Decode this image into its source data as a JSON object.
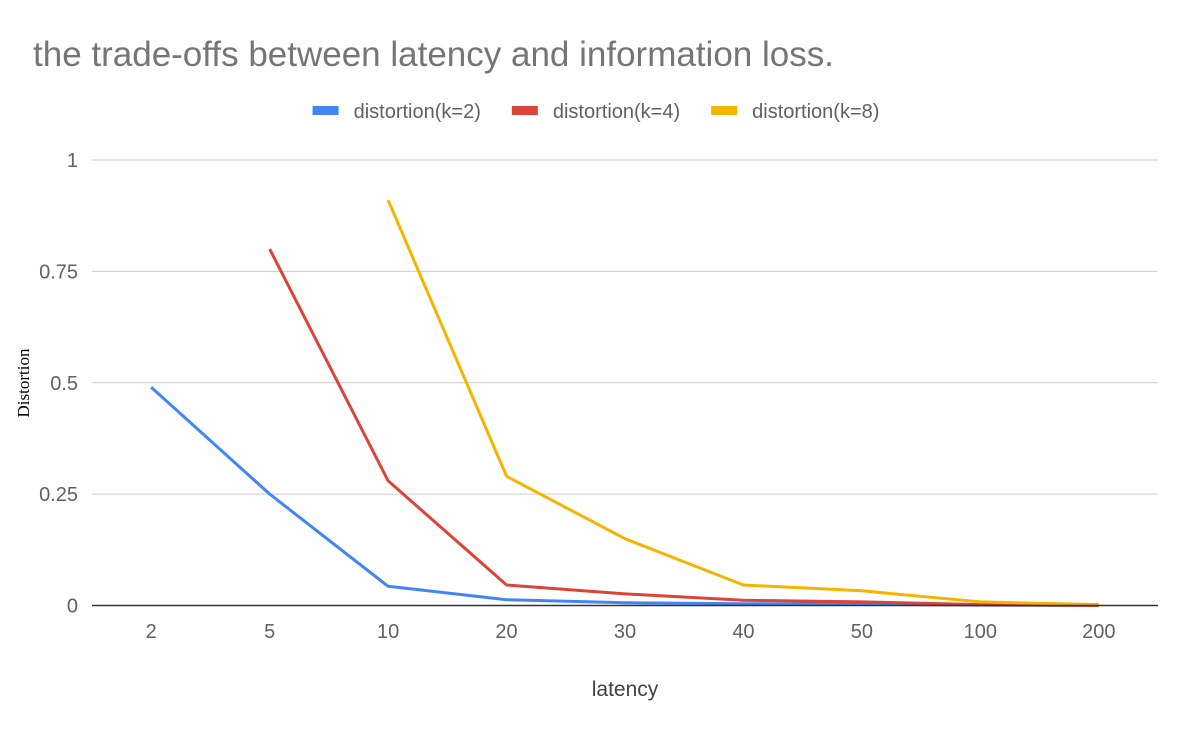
{
  "chart_data": {
    "type": "line",
    "title": "the trade-offs between latency and information loss.",
    "xlabel": "latency",
    "ylabel": "Distortion",
    "categories": [
      "2",
      "5",
      "10",
      "20",
      "30",
      "40",
      "50",
      "100",
      "200"
    ],
    "ylim": [
      0,
      1
    ],
    "yticks": [
      "0",
      "0.25",
      "0.5",
      "0.75",
      "1"
    ],
    "grid": "horizontal",
    "legend_position": "top",
    "series": [
      {
        "name": "distortion(k=2)",
        "color": "#4285F4",
        "values": [
          0.49,
          0.25,
          0.043,
          0.013,
          0.006,
          0.004,
          0.003,
          0.001,
          0.0
        ]
      },
      {
        "name": "distortion(k=4)",
        "color": "#DB4437",
        "values": [
          null,
          0.8,
          0.28,
          0.046,
          0.026,
          0.012,
          0.008,
          0.002,
          0.0
        ]
      },
      {
        "name": "distortion(k=8)",
        "color": "#F4B400",
        "values": [
          null,
          null,
          0.91,
          0.29,
          0.15,
          0.046,
          0.033,
          0.008,
          0.002
        ]
      }
    ]
  }
}
